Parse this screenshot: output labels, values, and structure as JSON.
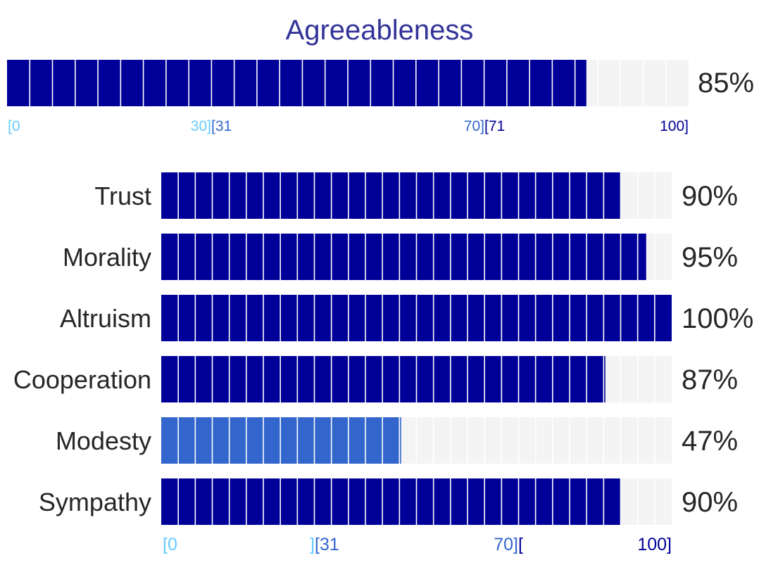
{
  "chart_data": {
    "type": "bar",
    "title": "Agreeableness",
    "overall": {
      "value": 85,
      "value_label": "85%"
    },
    "categories": [
      "Trust",
      "Morality",
      "Altruism",
      "Cooperation",
      "Modesty",
      "Sympathy"
    ],
    "values": [
      90,
      95,
      100,
      87,
      47,
      90
    ],
    "value_labels": [
      "90%",
      "95%",
      "100%",
      "87%",
      "47%",
      "90%"
    ],
    "xlim": [
      0,
      100
    ],
    "segments": 30,
    "overall_ticks": [
      "[0",
      "30]",
      "[31",
      "70]",
      "[71",
      "100]"
    ],
    "facet_ticks": [
      "[0",
      "]",
      "[31",
      "70]",
      "[",
      "100]"
    ],
    "colors": {
      "title": "#333399",
      "high": "#000099",
      "mid": "#3366cc",
      "track": "#f4f4f4",
      "divider": "#ffffff",
      "tick_low": "#66ccff",
      "tick_mid": "#3366cc",
      "tick_high": "#000099"
    }
  }
}
